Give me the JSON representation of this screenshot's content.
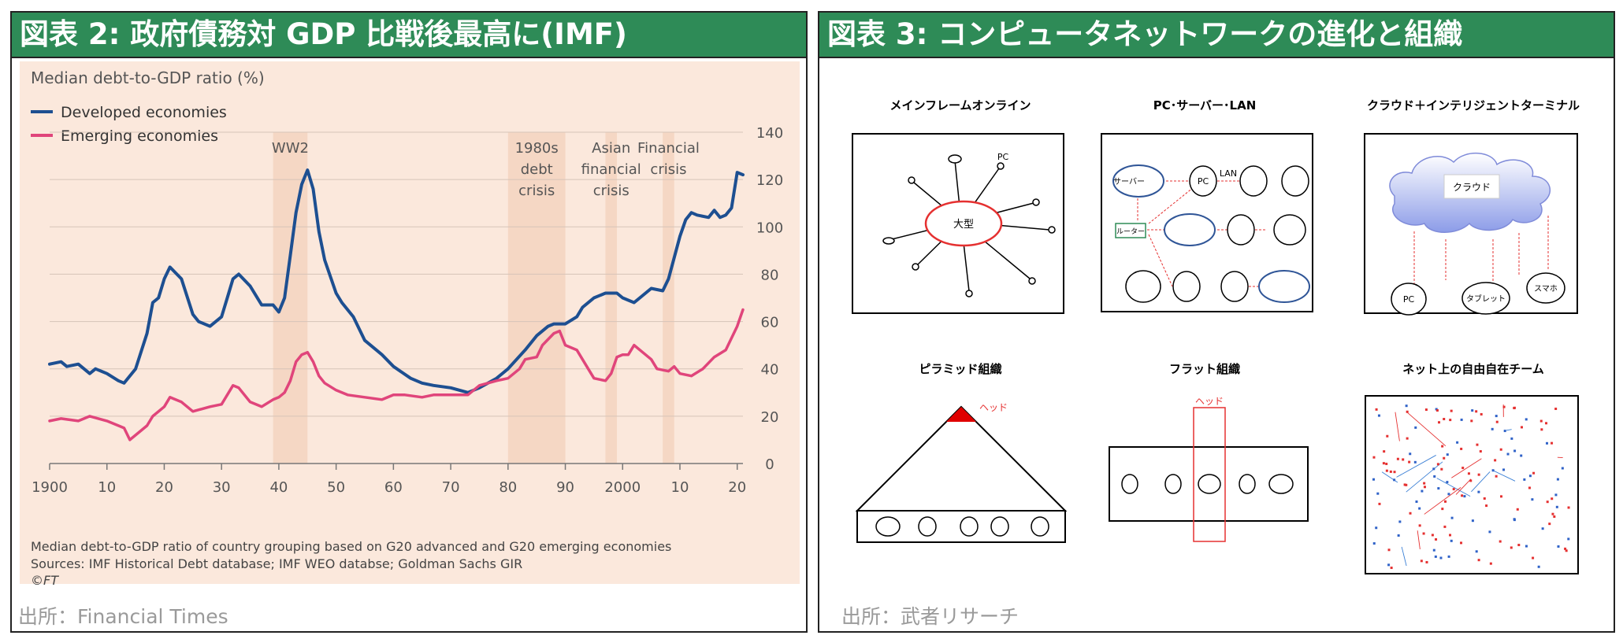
{
  "left_panel": {
    "banner": "図表 2: 政府債務対 GDP 比戦後最高に(IMF)",
    "source": "出所：Financial Times"
  },
  "right_panel": {
    "banner": "図表 3: コンピュータネットワークの進化と組織",
    "source": "出所：武者リサーチ",
    "diagram_titles": {
      "mainframe": "メインフレームオンライン",
      "pc_lan": "PC･サーバー･LAN",
      "cloud": "クラウド＋インテリジェントターミナル",
      "pyramid": "ピラミッド組織",
      "flat": "フラット組織",
      "net_team": "ネット上の自由自在チーム"
    },
    "labels": {
      "mainframe_center": "大型",
      "pc": "PC",
      "server": "サーバー",
      "lan": "LAN",
      "router": "ルーター",
      "cloud": "クラウド",
      "tablet": "タブレット",
      "smartphone": "スマホ",
      "head": "ヘッド"
    }
  },
  "chart_data": {
    "type": "line",
    "title": "Median debt-to-GDP ratio (%)",
    "footnote": "Median debt-to-GDP ratio of country grouping based on G20 advanced and G20 emerging economies",
    "sources": "Sources: IMF Historical Debt database; IMF WEO databse; Goldman Sachs GIR",
    "credit": "©FT",
    "xlim": [
      1900,
      2021
    ],
    "ylim": [
      0,
      140
    ],
    "x_ticks": [
      1900,
      1910,
      1920,
      1930,
      1940,
      1950,
      1960,
      1970,
      1980,
      1990,
      2000,
      2010,
      2020
    ],
    "x_tick_labels": [
      "1900",
      "10",
      "20",
      "30",
      "40",
      "50",
      "60",
      "70",
      "80",
      "90",
      "2000",
      "10",
      "20"
    ],
    "y_ticks": [
      0,
      20,
      40,
      60,
      80,
      100,
      120,
      140
    ],
    "grid": true,
    "legend_position": "top-left",
    "shaded_periods": [
      {
        "label": "WW2",
        "start": 1939,
        "end": 1945
      },
      {
        "label": "1980s debt crisis",
        "start": 1980,
        "end": 1990
      },
      {
        "label": "Asian financial crisis",
        "start": 1997,
        "end": 1999
      },
      {
        "label": "Financial crisis",
        "start": 2007,
        "end": 2009
      }
    ],
    "series": [
      {
        "name": "Developed economies",
        "color": "#1d4f91",
        "points": [
          [
            1900,
            42
          ],
          [
            1902,
            43
          ],
          [
            1903,
            41
          ],
          [
            1905,
            42
          ],
          [
            1907,
            38
          ],
          [
            1908,
            40
          ],
          [
            1910,
            38
          ],
          [
            1912,
            35
          ],
          [
            1913,
            34
          ],
          [
            1915,
            40
          ],
          [
            1917,
            55
          ],
          [
            1918,
            68
          ],
          [
            1919,
            70
          ],
          [
            1920,
            78
          ],
          [
            1921,
            83
          ],
          [
            1923,
            78
          ],
          [
            1925,
            63
          ],
          [
            1926,
            60
          ],
          [
            1928,
            58
          ],
          [
            1930,
            62
          ],
          [
            1931,
            70
          ],
          [
            1932,
            78
          ],
          [
            1933,
            80
          ],
          [
            1935,
            75
          ],
          [
            1937,
            67
          ],
          [
            1939,
            67
          ],
          [
            1940,
            64
          ],
          [
            1941,
            70
          ],
          [
            1942,
            88
          ],
          [
            1943,
            106
          ],
          [
            1944,
            118
          ],
          [
            1945,
            124
          ],
          [
            1946,
            116
          ],
          [
            1947,
            98
          ],
          [
            1948,
            86
          ],
          [
            1950,
            72
          ],
          [
            1951,
            68
          ],
          [
            1953,
            62
          ],
          [
            1955,
            52
          ],
          [
            1958,
            46
          ],
          [
            1960,
            41
          ],
          [
            1963,
            36
          ],
          [
            1965,
            34
          ],
          [
            1967,
            33
          ],
          [
            1970,
            32
          ],
          [
            1973,
            30
          ],
          [
            1975,
            32
          ],
          [
            1978,
            36
          ],
          [
            1980,
            40
          ],
          [
            1983,
            48
          ],
          [
            1985,
            54
          ],
          [
            1987,
            58
          ],
          [
            1988,
            59
          ],
          [
            1990,
            59
          ],
          [
            1992,
            62
          ],
          [
            1993,
            66
          ],
          [
            1995,
            70
          ],
          [
            1997,
            72
          ],
          [
            1999,
            72
          ],
          [
            2000,
            70
          ],
          [
            2001,
            69
          ],
          [
            2002,
            68
          ],
          [
            2003,
            70
          ],
          [
            2005,
            74
          ],
          [
            2007,
            73
          ],
          [
            2008,
            78
          ],
          [
            2010,
            96
          ],
          [
            2011,
            103
          ],
          [
            2012,
            106
          ],
          [
            2013,
            105
          ],
          [
            2015,
            104
          ],
          [
            2016,
            107
          ],
          [
            2017,
            104
          ],
          [
            2018,
            105
          ],
          [
            2019,
            108
          ],
          [
            2020,
            123
          ],
          [
            2021,
            122
          ]
        ]
      },
      {
        "name": "Emerging economies",
        "color": "#e0457b",
        "points": [
          [
            1900,
            18
          ],
          [
            1902,
            19
          ],
          [
            1905,
            18
          ],
          [
            1907,
            20
          ],
          [
            1910,
            18
          ],
          [
            1912,
            16
          ],
          [
            1913,
            15
          ],
          [
            1914,
            10
          ],
          [
            1915,
            12
          ],
          [
            1917,
            16
          ],
          [
            1918,
            20
          ],
          [
            1920,
            24
          ],
          [
            1921,
            28
          ],
          [
            1923,
            26
          ],
          [
            1925,
            22
          ],
          [
            1928,
            24
          ],
          [
            1930,
            25
          ],
          [
            1932,
            33
          ],
          [
            1933,
            32
          ],
          [
            1935,
            26
          ],
          [
            1937,
            24
          ],
          [
            1939,
            27
          ],
          [
            1940,
            28
          ],
          [
            1941,
            30
          ],
          [
            1942,
            35
          ],
          [
            1943,
            43
          ],
          [
            1944,
            46
          ],
          [
            1945,
            47
          ],
          [
            1946,
            43
          ],
          [
            1947,
            37
          ],
          [
            1948,
            34
          ],
          [
            1950,
            31
          ],
          [
            1952,
            29
          ],
          [
            1955,
            28
          ],
          [
            1958,
            27
          ],
          [
            1960,
            29
          ],
          [
            1962,
            29
          ],
          [
            1965,
            28
          ],
          [
            1967,
            29
          ],
          [
            1970,
            29
          ],
          [
            1973,
            29
          ],
          [
            1975,
            33
          ],
          [
            1978,
            35
          ],
          [
            1980,
            36
          ],
          [
            1982,
            40
          ],
          [
            1983,
            44
          ],
          [
            1985,
            45
          ],
          [
            1986,
            50
          ],
          [
            1988,
            55
          ],
          [
            1989,
            56
          ],
          [
            1990,
            50
          ],
          [
            1992,
            48
          ],
          [
            1994,
            40
          ],
          [
            1995,
            36
          ],
          [
            1997,
            35
          ],
          [
            1998,
            38
          ],
          [
            1999,
            45
          ],
          [
            2000,
            46
          ],
          [
            2001,
            46
          ],
          [
            2002,
            50
          ],
          [
            2003,
            48
          ],
          [
            2005,
            44
          ],
          [
            2006,
            40
          ],
          [
            2008,
            39
          ],
          [
            2009,
            41
          ],
          [
            2010,
            38
          ],
          [
            2012,
            37
          ],
          [
            2014,
            40
          ],
          [
            2016,
            45
          ],
          [
            2018,
            48
          ],
          [
            2020,
            58
          ],
          [
            2021,
            65
          ]
        ]
      }
    ]
  }
}
